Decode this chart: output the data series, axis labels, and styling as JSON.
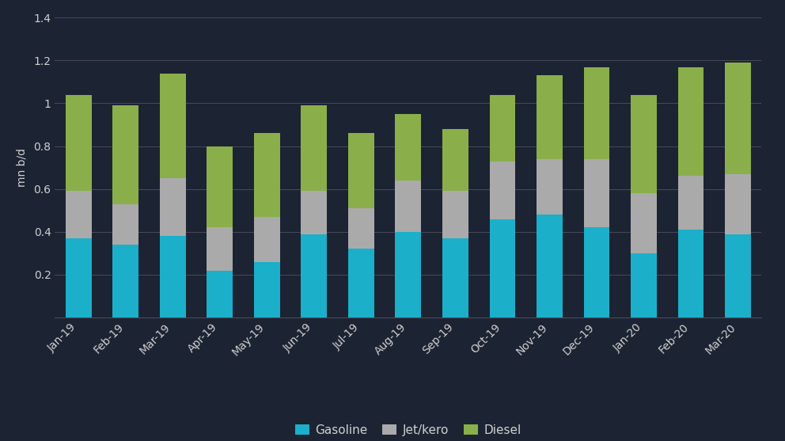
{
  "categories": [
    "Jan-19",
    "Feb-19",
    "Mar-19",
    "Apr-19",
    "May-19",
    "Jun-19",
    "Jul-19",
    "Aug-19",
    "Sep-19",
    "Oct-19",
    "Nov-19",
    "Dec-19",
    "Jan-20",
    "Feb-20",
    "Mar-20"
  ],
  "gasoline": [
    0.37,
    0.34,
    0.38,
    0.22,
    0.26,
    0.39,
    0.32,
    0.4,
    0.37,
    0.46,
    0.48,
    0.42,
    0.3,
    0.41,
    0.39
  ],
  "jet_kero": [
    0.22,
    0.19,
    0.27,
    0.2,
    0.21,
    0.2,
    0.19,
    0.24,
    0.22,
    0.27,
    0.26,
    0.32,
    0.28,
    0.25,
    0.28
  ],
  "diesel": [
    0.45,
    0.46,
    0.49,
    0.38,
    0.39,
    0.4,
    0.35,
    0.31,
    0.29,
    0.31,
    0.39,
    0.43,
    0.46,
    0.51,
    0.52
  ],
  "gasoline_color": "#1bafc9",
  "jet_kero_color": "#aaaaaa",
  "diesel_color": "#8aaf4a",
  "background_color": "#1c2333",
  "grid_color": "#4a4a5a",
  "text_color": "#d0d0d0",
  "ylabel": "mn b/d",
  "ylim": [
    0,
    1.4
  ],
  "yticks": [
    0,
    0.2,
    0.4,
    0.6,
    0.8,
    1.0,
    1.2,
    1.4
  ],
  "legend_labels": [
    "Gasoline",
    "Jet/kero",
    "Diesel"
  ],
  "bar_width": 0.55
}
